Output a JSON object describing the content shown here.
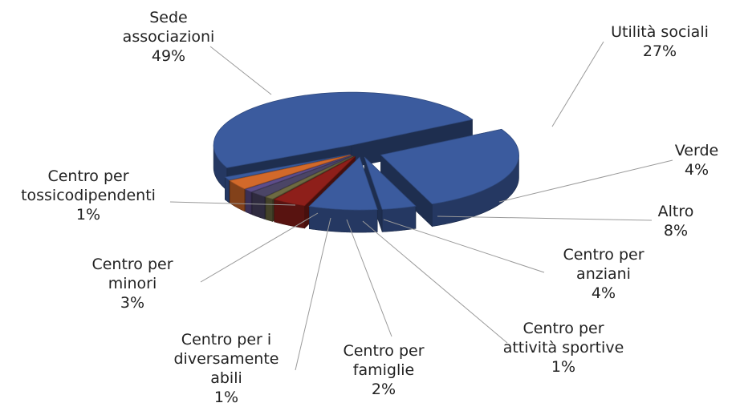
{
  "chart_data": {
    "type": "pie3d",
    "categories": [
      "Utilità sociali",
      "Verde",
      "Altro",
      "Centro per anziani",
      "Centro per attività sportive",
      "Centro per famiglie",
      "Centro per i diversamente abili",
      "Centro per minori",
      "Centro per tossicodipendenti",
      "Sede associazioni"
    ],
    "values": [
      27,
      4,
      8,
      4,
      1,
      2,
      1,
      3,
      1,
      49
    ],
    "value_labels": [
      "27%",
      "4%",
      "8%",
      "4%",
      "1%",
      "2%",
      "1%",
      "3%",
      "1%",
      "49%"
    ],
    "colors": [
      "#3b5b9e",
      "#3b5b9e",
      "#3b5b9e",
      "#8e1f1a",
      "#6e6a42",
      "#4b4566",
      "#5d4d8a",
      "#d2692a",
      "#3b5b9e",
      "#3b5b9e"
    ]
  }
}
